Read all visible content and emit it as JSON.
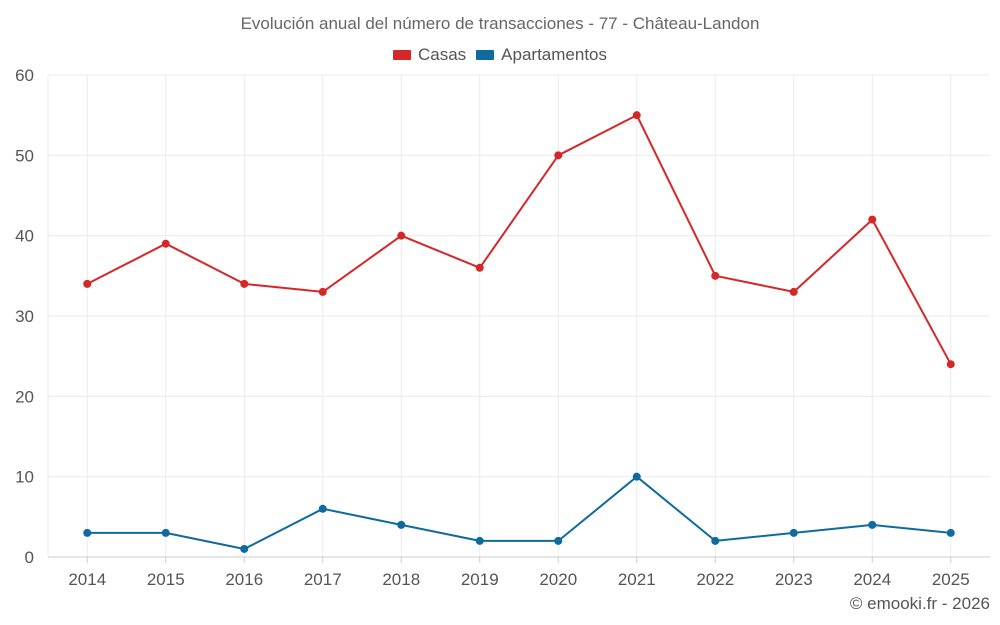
{
  "chart_data": {
    "type": "line",
    "title": "Evolución anual del número de transacciones - 77 - Château-Landon",
    "categories": [
      "2014",
      "2015",
      "2016",
      "2017",
      "2018",
      "2019",
      "2020",
      "2021",
      "2022",
      "2023",
      "2024",
      "2025"
    ],
    "series": [
      {
        "name": "Casas",
        "color": "#d62728",
        "values": [
          34,
          39,
          34,
          33,
          40,
          36,
          50,
          55,
          35,
          33,
          42,
          24
        ]
      },
      {
        "name": "Apartamentos",
        "color": "#0f6aa0",
        "values": [
          3,
          3,
          1,
          6,
          4,
          2,
          2,
          10,
          2,
          3,
          4,
          3
        ]
      }
    ],
    "yticks": [
      "0",
      "10",
      "20",
      "30",
      "40",
      "50",
      "60"
    ],
    "ylim": [
      0,
      60
    ],
    "grid": true,
    "xlabel": "",
    "ylabel": "",
    "legend_position": "top-center"
  },
  "credit": "© emooki.fr - 2026"
}
